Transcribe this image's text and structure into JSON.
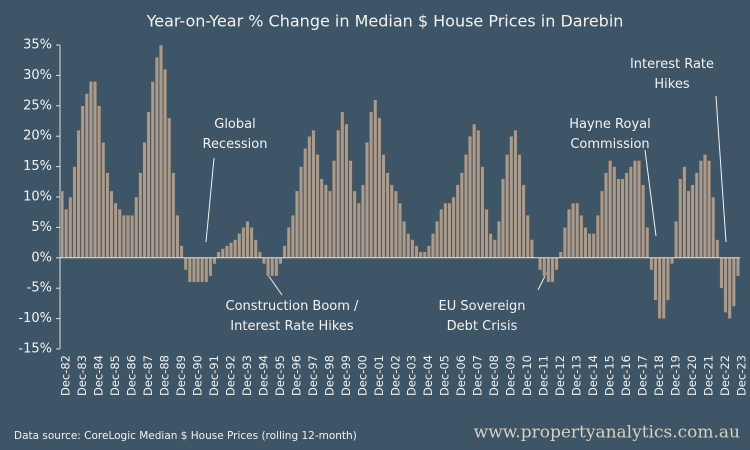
{
  "chart_data": {
    "type": "bar",
    "title": "Year-on-Year % Change in Median $ House Prices in Darebin",
    "source": "Data source: CoreLogic Median $ House Prices (rolling 12-month)",
    "website": "www.propertyanalytics.com.au",
    "color": "#a89c90",
    "ylim": [
      -15,
      35
    ],
    "yticks": [
      {
        "value": -15,
        "label": "-15%"
      },
      {
        "value": -10,
        "label": "-10%"
      },
      {
        "value": -5,
        "label": "-5%"
      },
      {
        "value": 0,
        "label": "0%"
      },
      {
        "value": 5,
        "label": "5%"
      },
      {
        "value": 10,
        "label": "10%"
      },
      {
        "value": 15,
        "label": "15%"
      },
      {
        "value": 20,
        "label": "20%"
      },
      {
        "value": 25,
        "label": "25%"
      },
      {
        "value": 30,
        "label": "30%"
      },
      {
        "value": 35,
        "label": "35%"
      }
    ],
    "annotations": [
      [
        "Global",
        "Recession"
      ],
      [
        "Construction Boom /",
        "Interest Rate Hikes"
      ],
      [
        "EU Sovereign",
        "Debt Crisis"
      ],
      [
        "Hayne Royal",
        "Commission"
      ],
      [
        "Interest Rate",
        "Hikes"
      ]
    ],
    "categories": [
      "Dec-82",
      null,
      null,
      null,
      "Dec-83",
      null,
      null,
      null,
      "Dec-84",
      null,
      null,
      null,
      "Dec-85",
      null,
      null,
      null,
      "Dec-86",
      null,
      null,
      null,
      "Dec-87",
      null,
      null,
      null,
      "Dec-88",
      null,
      null,
      null,
      "Dec-89",
      null,
      null,
      null,
      "Dec-90",
      null,
      null,
      null,
      "Dec-91",
      null,
      null,
      null,
      "Dec-92",
      null,
      null,
      null,
      "Dec-93",
      null,
      null,
      null,
      "Dec-94",
      null,
      null,
      null,
      "Dec-95",
      null,
      null,
      null,
      "Dec-96",
      null,
      null,
      null,
      "Dec-97",
      null,
      null,
      null,
      "Dec-98",
      null,
      null,
      null,
      "Dec-99",
      null,
      null,
      null,
      "Dec-00",
      null,
      null,
      null,
      "Dec-01",
      null,
      null,
      null,
      "Dec-02",
      null,
      null,
      null,
      "Dec-03",
      null,
      null,
      null,
      "Dec-04",
      null,
      null,
      null,
      "Dec-05",
      null,
      null,
      null,
      "Dec-06",
      null,
      null,
      null,
      "Dec-07",
      null,
      null,
      null,
      "Dec-08",
      null,
      null,
      null,
      "Dec-09",
      null,
      null,
      null,
      "Dec-10",
      null,
      null,
      null,
      "Dec-11",
      null,
      null,
      null,
      "Dec-12",
      null,
      null,
      null,
      "Dec-13",
      null,
      null,
      null,
      "Dec-14",
      null,
      null,
      null,
      "Dec-15",
      null,
      null,
      null,
      "Dec-16",
      null,
      null,
      null,
      "Dec-17",
      null,
      null,
      null,
      "Dec-18",
      null,
      null,
      null,
      "Dec-19",
      null,
      null,
      null,
      "Dec-20",
      null,
      null,
      null,
      "Dec-21",
      null,
      null,
      null,
      "Dec-22",
      null,
      null,
      null,
      "Dec-23"
    ],
    "values": [
      11,
      8,
      10,
      15,
      21,
      25,
      27,
      29,
      29,
      25,
      19,
      14,
      11,
      9,
      8,
      7,
      7,
      7,
      10,
      14,
      19,
      24,
      29,
      33,
      35,
      31,
      23,
      14,
      7,
      2,
      -2,
      -4,
      -4,
      -4,
      -4,
      -4,
      -3,
      -1,
      1,
      1.5,
      2,
      2.5,
      3,
      4,
      5,
      6,
      5,
      3,
      1,
      -1,
      -3,
      -3,
      -3,
      -1,
      2,
      5,
      7,
      11,
      15,
      18,
      20,
      21,
      17,
      13,
      12,
      11,
      16,
      21,
      24,
      22,
      16,
      11,
      9,
      12,
      19,
      24,
      26,
      23,
      17,
      14,
      12,
      11,
      9,
      6,
      4,
      3,
      2,
      1,
      1,
      2,
      4,
      6,
      8,
      9,
      9,
      10,
      12,
      14,
      17,
      20,
      22,
      21,
      15,
      8,
      4,
      3,
      6,
      13,
      17,
      20,
      21,
      17,
      12,
      7,
      3,
      0,
      -2,
      -3,
      -4,
      -4,
      -2,
      1,
      5,
      8,
      9,
      9,
      7,
      5,
      4,
      4,
      7,
      11,
      14,
      16,
      15,
      13,
      13,
      14,
      15,
      16,
      16,
      12,
      5,
      -2,
      -7,
      -10,
      -10,
      -7,
      -1,
      6,
      13,
      15,
      11,
      12,
      14,
      16,
      17,
      16,
      10,
      3,
      -5,
      -9,
      -10,
      -8,
      -3
    ]
  }
}
